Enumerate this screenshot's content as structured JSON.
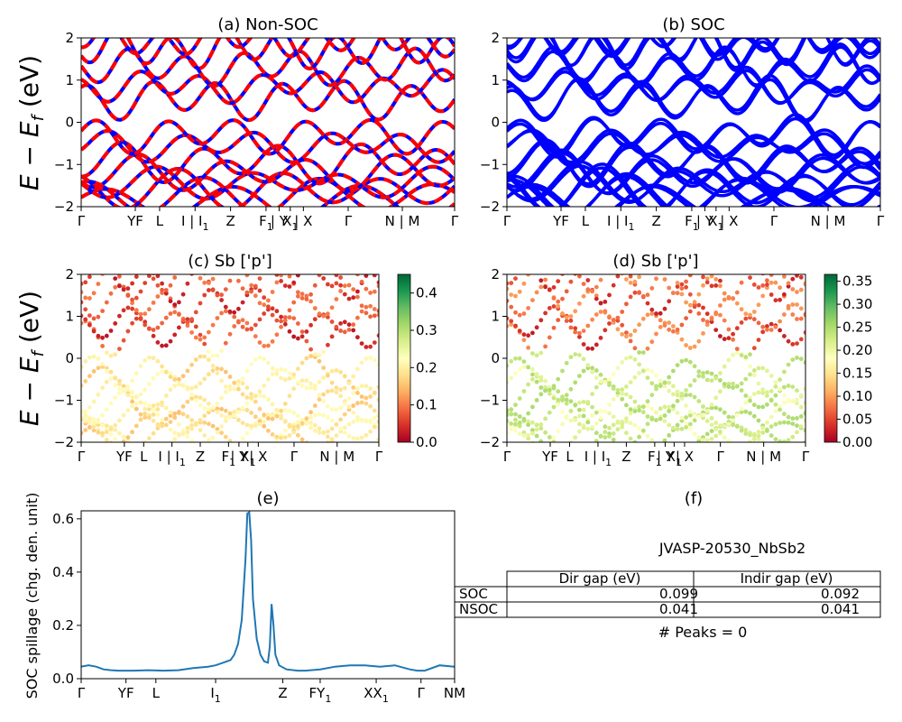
{
  "figure": {
    "ylabel_band": "E − E_f (eV)",
    "ylabel_band_main": "E − E",
    "ylabel_band_sub": "f",
    "ylabel_band_tail": " (eV)"
  },
  "colors": {
    "soc_blue": "#0000ff",
    "nonsoc_red": "#ff0000",
    "spillage_line": "#1f77b4",
    "colormap": [
      "#a50026",
      "#d73027",
      "#f46d43",
      "#fdae61",
      "#fee08b",
      "#ffffbf",
      "#d9ef8b",
      "#a6d96a",
      "#66bd63",
      "#1a9850",
      "#006837"
    ]
  },
  "high_symmetry_ticks": [
    {
      "label": "Γ",
      "sub": "",
      "kpos": 0.0
    },
    {
      "label": "YF",
      "sub": "",
      "kpos": 0.145
    },
    {
      "label": "L",
      "sub": "",
      "kpos": 0.21
    },
    {
      "label": "I | I",
      "sub": "1",
      "kpos": 0.305
    },
    {
      "label": "Z",
      "sub": "",
      "kpos": 0.4
    },
    {
      "label": "F",
      "sub": "1",
      "kpos": 0.495
    },
    {
      "label": "| Y",
      "sub": "",
      "kpos": 0.53
    },
    {
      "label": "X",
      "sub": "1",
      "kpos": 0.56
    },
    {
      "label": "| X",
      "sub": "",
      "kpos": 0.595
    },
    {
      "label": "Γ",
      "sub": "",
      "kpos": 0.715
    },
    {
      "label": "N | M",
      "sub": "",
      "kpos": 0.86
    },
    {
      "label": "Γ",
      "sub": "",
      "kpos": 1.0
    }
  ],
  "chart_data": [
    {
      "type": "line",
      "panel": "a",
      "title": "(a) Non-SOC",
      "ylabel": "E − E_f (eV)",
      "ylim": [
        -2,
        2
      ],
      "yticks": [
        -2,
        -1,
        0,
        1,
        2
      ],
      "series": [
        {
          "color": "#0000ff",
          "style": "solid",
          "bands": "nonsoc"
        },
        {
          "color": "#ff0000",
          "style": "dashed",
          "bands": "nonsoc"
        }
      ]
    },
    {
      "type": "line",
      "panel": "b",
      "title": "(b) SOC",
      "ylim": [
        -2,
        2
      ],
      "yticks": [
        -2,
        -1,
        0,
        1,
        2
      ],
      "series": [
        {
          "color": "#0000ff",
          "style": "solid",
          "bands": "soc"
        }
      ]
    },
    {
      "type": "scatter",
      "panel": "c",
      "title": "(c)  Sb ['p']",
      "ylabel": "E − E_f (eV)",
      "ylim": [
        -2,
        2
      ],
      "yticks": [
        -2,
        -1,
        0,
        1,
        2
      ],
      "colorbar": {
        "range": [
          0.0,
          0.45
        ],
        "ticks": [
          "0.0",
          "0.1",
          "0.2",
          "0.3",
          "0.4"
        ],
        "tick_values": [
          0.0,
          0.1,
          0.2,
          0.3,
          0.4
        ]
      }
    },
    {
      "type": "scatter",
      "panel": "d",
      "title": "(d) Sb ['p']",
      "ylim": [
        -2,
        2
      ],
      "yticks": [
        -2,
        -1,
        0,
        1,
        2
      ],
      "colorbar": {
        "range": [
          0.0,
          0.365
        ],
        "ticks": [
          "0.00",
          "0.05",
          "0.10",
          "0.15",
          "0.20",
          "0.25",
          "0.30",
          "0.35"
        ],
        "tick_values": [
          0.0,
          0.05,
          0.1,
          0.15,
          0.2,
          0.25,
          0.3,
          0.35
        ]
      }
    },
    {
      "type": "line",
      "panel": "e",
      "title": "(e)",
      "ylabel": "SOC spillage (chg. den. unit)",
      "ylim": [
        0,
        0.63
      ],
      "yticks": [
        0.0,
        0.2,
        0.4,
        0.6
      ],
      "ytick_labels": [
        "0.0",
        "0.2",
        "0.4",
        "0.6"
      ],
      "xtick_labels": [
        {
          "label": "Γ",
          "sub": "",
          "kpos": 0.0
        },
        {
          "label": "YF",
          "sub": "",
          "kpos": 0.12
        },
        {
          "label": "L",
          "sub": "",
          "kpos": 0.2
        },
        {
          "label": "I",
          "sub": "1",
          "kpos": 0.36
        },
        {
          "label": "Z",
          "sub": "",
          "kpos": 0.54
        },
        {
          "label": "FY",
          "sub": "1",
          "kpos": 0.64
        },
        {
          "label": "XX",
          "sub": "1",
          "kpos": 0.79
        },
        {
          "label": "Γ",
          "sub": "",
          "kpos": 0.91
        },
        {
          "label": "NM",
          "sub": "",
          "kpos": 1.0
        }
      ],
      "x": [
        0,
        0.02,
        0.04,
        0.06,
        0.08,
        0.1,
        0.14,
        0.18,
        0.22,
        0.26,
        0.3,
        0.34,
        0.36,
        0.38,
        0.4,
        0.41,
        0.42,
        0.43,
        0.44,
        0.445,
        0.45,
        0.455,
        0.46,
        0.47,
        0.48,
        0.49,
        0.5,
        0.505,
        0.51,
        0.515,
        0.52,
        0.53,
        0.55,
        0.58,
        0.6,
        0.64,
        0.68,
        0.72,
        0.76,
        0.8,
        0.84,
        0.88,
        0.9,
        0.92,
        0.96,
        1.0
      ],
      "y": [
        0.045,
        0.05,
        0.045,
        0.035,
        0.032,
        0.03,
        0.03,
        0.032,
        0.03,
        0.032,
        0.04,
        0.045,
        0.05,
        0.06,
        0.07,
        0.09,
        0.13,
        0.22,
        0.45,
        0.62,
        0.625,
        0.52,
        0.3,
        0.15,
        0.09,
        0.065,
        0.06,
        0.12,
        0.28,
        0.2,
        0.09,
        0.05,
        0.035,
        0.03,
        0.03,
        0.035,
        0.045,
        0.05,
        0.05,
        0.045,
        0.05,
        0.035,
        0.03,
        0.03,
        0.05,
        0.045
      ]
    }
  ],
  "table": {
    "title": "(f)",
    "subtitle": "JVASP-20530_NbSb2",
    "columns": [
      "Dir gap (eV)",
      "Indir gap (eV)"
    ],
    "rows": [
      {
        "label": "SOC",
        "dir": "0.099",
        "indir": "0.092"
      },
      {
        "label": "NSOC",
        "dir": "0.041",
        "indir": "0.041"
      }
    ],
    "footer": "# Peaks = 0"
  }
}
